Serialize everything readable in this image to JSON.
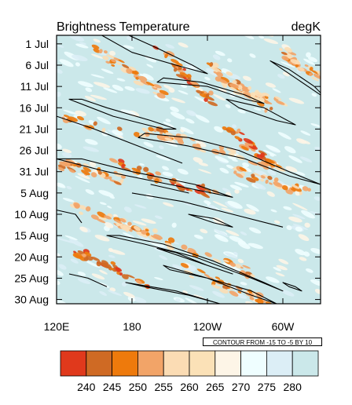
{
  "chart_data": {
    "type": "heatmap",
    "title": "Brightness Temperature",
    "units": "degK",
    "x_tick_labels": [
      "120E",
      "180",
      "120W",
      "60W"
    ],
    "x_ticks_deg": [
      120,
      180,
      240,
      300
    ],
    "x_range_deg": [
      120,
      330
    ],
    "y_tick_labels": [
      "1 Jul",
      "6 Jul",
      "11 Jul",
      "16 Jul",
      "21 Jul",
      "26 Jul",
      "31 Jul",
      "5 Aug",
      "10 Aug",
      "15 Aug",
      "20 Aug",
      "25 Aug",
      "30 Aug"
    ],
    "y_ticks_day": [
      0,
      5,
      10,
      15,
      20,
      25,
      30,
      35,
      40,
      45,
      50,
      55,
      60
    ],
    "y_range_day": [
      -2,
      61
    ],
    "colorbar": {
      "colors": [
        "#e0391c",
        "#cf6a24",
        "#ee7a0c",
        "#f2a468",
        "#fbdcb4",
        "#fbe1b7",
        "#fdf5e7",
        "#effeff",
        "#dceef6",
        "#cbe8ea"
      ],
      "labels": [
        "240",
        "245",
        "250",
        "255",
        "260",
        "265",
        "270",
        "275",
        "280"
      ]
    },
    "contour_note": "CONTOUR FROM -15 TO -5 BY 10",
    "background_color": "#cbe8ea",
    "convective_streaks": [
      {
        "lon1": 150,
        "day1": 1,
        "lon2": 205,
        "day2": 12,
        "level": 1
      },
      {
        "lon1": 200,
        "day1": 1,
        "lon2": 245,
        "day2": 14,
        "level": 2
      },
      {
        "lon1": 240,
        "day1": 5,
        "lon2": 290,
        "day2": 15,
        "level": 1
      },
      {
        "lon1": 250,
        "day1": 9,
        "lon2": 300,
        "day2": 14,
        "level": 0
      },
      {
        "lon1": 125,
        "day1": 18,
        "lon2": 220,
        "day2": 22,
        "level": 1
      },
      {
        "lon1": 200,
        "day1": 21,
        "lon2": 300,
        "day2": 29,
        "level": 0
      },
      {
        "lon1": 120,
        "day1": 28,
        "lon2": 175,
        "day2": 32,
        "level": 1
      },
      {
        "lon1": 165,
        "day1": 28,
        "lon2": 245,
        "day2": 35,
        "level": 2
      },
      {
        "lon1": 260,
        "day1": 30,
        "lon2": 320,
        "day2": 35,
        "level": 1
      },
      {
        "lon1": 130,
        "day1": 38,
        "lon2": 200,
        "day2": 45,
        "level": 0
      },
      {
        "lon1": 175,
        "day1": 43,
        "lon2": 275,
        "day2": 54,
        "level": 1
      },
      {
        "lon1": 130,
        "day1": 48,
        "lon2": 200,
        "day2": 57,
        "level": 2
      },
      {
        "lon1": 215,
        "day1": 52,
        "lon2": 290,
        "day2": 61,
        "level": 1
      },
      {
        "lon1": 250,
        "day1": 18,
        "lon2": 290,
        "day2": 28,
        "level": 2
      },
      {
        "lon1": 300,
        "day1": 2,
        "lon2": 330,
        "day2": 8,
        "level": 1
      }
    ],
    "contours": [
      {
        "type": "loop",
        "points": [
          [
            150,
            -3
          ],
          [
            180,
            2
          ],
          [
            215,
            5
          ],
          [
            240,
            7
          ],
          [
            228,
            5
          ],
          [
            200,
            1
          ],
          [
            170,
            -3
          ]
        ]
      },
      {
        "type": "loop",
        "points": [
          [
            290,
            4
          ],
          [
            305,
            6
          ],
          [
            325,
            10
          ],
          [
            335,
            13
          ],
          [
            325,
            11
          ],
          [
            300,
            6
          ]
        ]
      },
      {
        "type": "loop",
        "points": [
          [
            200,
            9
          ],
          [
            240,
            10
          ],
          [
            270,
            13
          ],
          [
            285,
            14
          ],
          [
            270,
            12
          ],
          [
            235,
            9
          ],
          [
            205,
            8
          ]
        ]
      },
      {
        "type": "loop",
        "points": [
          [
            130,
            13
          ],
          [
            165,
            17
          ],
          [
            205,
            20
          ],
          [
            215,
            20
          ],
          [
            195,
            18
          ],
          [
            160,
            15
          ],
          [
            140,
            13
          ]
        ]
      },
      {
        "type": "loop",
        "points": [
          [
            255,
            13
          ],
          [
            285,
            15
          ],
          [
            310,
            19
          ],
          [
            295,
            18
          ],
          [
            265,
            15
          ]
        ]
      },
      {
        "type": "line",
        "points": [
          [
            120,
            17
          ],
          [
            150,
            20
          ],
          [
            185,
            24
          ],
          [
            220,
            28
          ]
        ]
      },
      {
        "type": "loop",
        "points": [
          [
            185,
            22
          ],
          [
            225,
            24
          ],
          [
            270,
            27
          ],
          [
            305,
            31
          ],
          [
            330,
            33
          ],
          [
            305,
            30
          ],
          [
            265,
            25
          ],
          [
            225,
            22
          ],
          [
            190,
            21
          ]
        ]
      },
      {
        "type": "loop",
        "points": [
          [
            120,
            27
          ],
          [
            160,
            30
          ],
          [
            210,
            33
          ],
          [
            260,
            36
          ],
          [
            230,
            33
          ],
          [
            180,
            30
          ],
          [
            140,
            27
          ]
        ]
      },
      {
        "type": "line",
        "points": [
          [
            180,
            35
          ],
          [
            220,
            37
          ],
          [
            260,
            40
          ],
          [
            300,
            43
          ]
        ]
      },
      {
        "type": "loop",
        "points": [
          [
            195,
            33
          ],
          [
            210,
            34
          ],
          [
            225,
            35
          ],
          [
            210,
            34
          ]
        ]
      },
      {
        "type": "line",
        "points": [
          [
            120,
            39
          ],
          [
            135,
            40
          ],
          [
            140,
            42
          ]
        ]
      },
      {
        "type": "loop",
        "points": [
          [
            225,
            40
          ],
          [
            245,
            41
          ],
          [
            260,
            43
          ],
          [
            245,
            42
          ]
        ]
      },
      {
        "type": "loop",
        "points": [
          [
            160,
            45
          ],
          [
            190,
            47
          ],
          [
            230,
            50
          ],
          [
            275,
            55
          ],
          [
            300,
            58
          ],
          [
            285,
            56
          ],
          [
            245,
            51
          ],
          [
            205,
            47
          ],
          [
            170,
            45
          ]
        ]
      },
      {
        "type": "loop",
        "points": [
          [
            200,
            48
          ],
          [
            230,
            51
          ],
          [
            260,
            54
          ],
          [
            240,
            52
          ],
          [
            215,
            49
          ]
        ]
      },
      {
        "type": "loop",
        "points": [
          [
            205,
            52
          ],
          [
            240,
            55
          ],
          [
            275,
            59
          ],
          [
            295,
            61
          ],
          [
            275,
            58
          ],
          [
            240,
            55
          ],
          [
            210,
            53
          ]
        ]
      },
      {
        "type": "line",
        "points": [
          [
            130,
            54
          ],
          [
            145,
            55
          ],
          [
            160,
            57
          ]
        ]
      },
      {
        "type": "loop",
        "points": [
          [
            175,
            56
          ],
          [
            215,
            58
          ],
          [
            250,
            61
          ],
          [
            225,
            59
          ],
          [
            190,
            57
          ]
        ]
      },
      {
        "type": "loop",
        "points": [
          [
            300,
            56
          ],
          [
            310,
            57
          ],
          [
            315,
            58
          ],
          [
            305,
            57
          ]
        ]
      }
    ]
  }
}
